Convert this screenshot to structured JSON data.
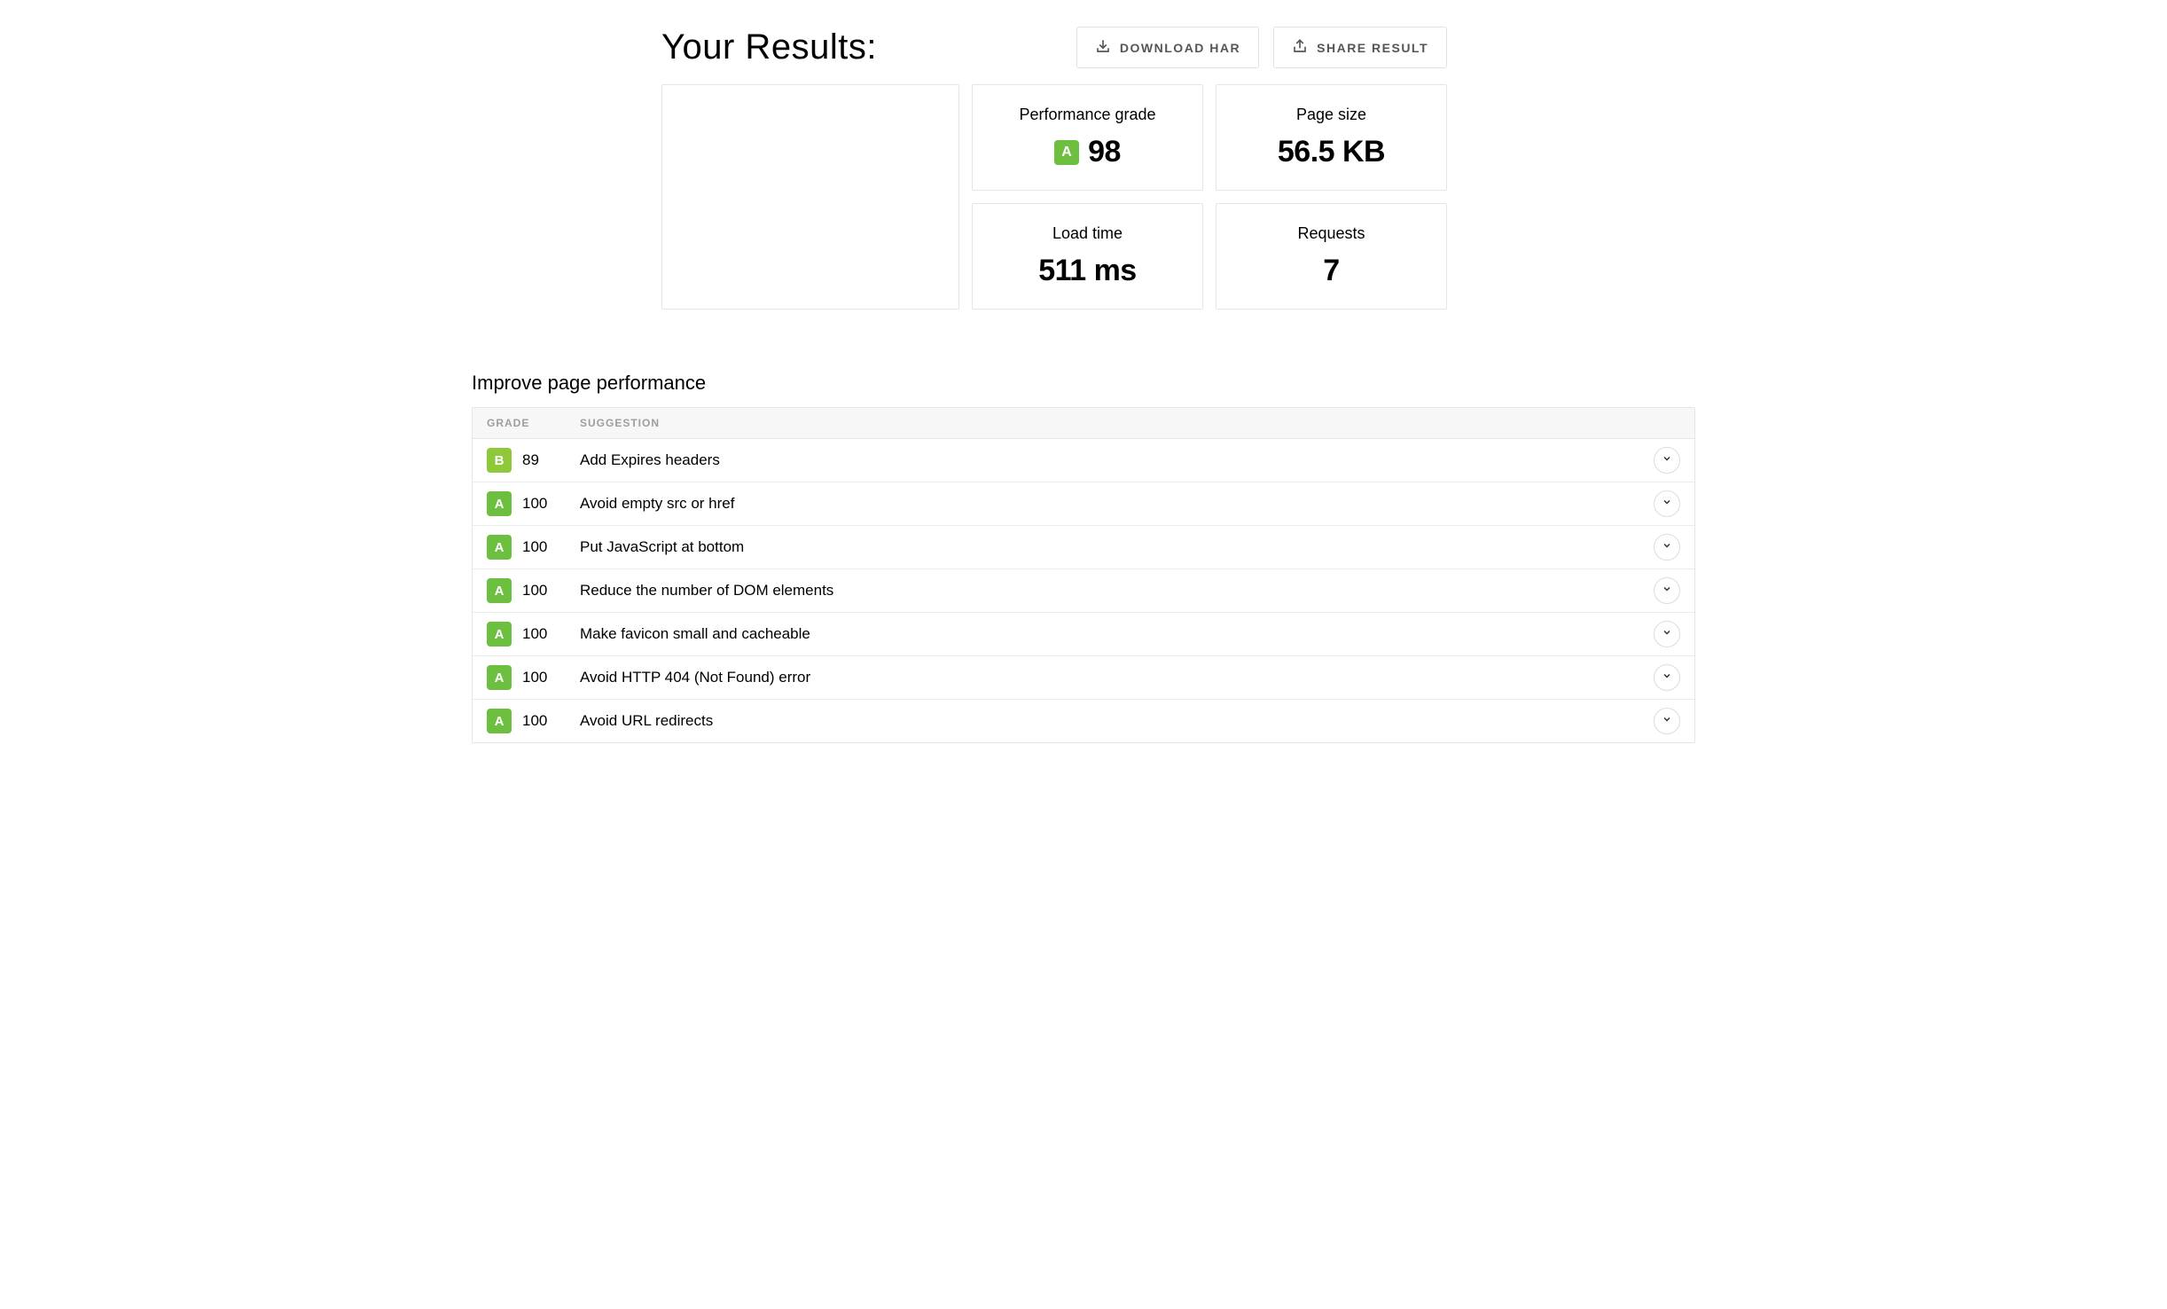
{
  "header": {
    "title": "Your Results:",
    "download_label": "DOWNLOAD HAR",
    "share_label": "SHARE RESULT"
  },
  "metrics": {
    "performance_grade": {
      "label": "Performance grade",
      "grade_letter": "A",
      "grade_color": "#6cbf3f",
      "value": "98"
    },
    "page_size": {
      "label": "Page size",
      "value": "56.5 KB"
    },
    "load_time": {
      "label": "Load time",
      "value": "511 ms"
    },
    "requests": {
      "label": "Requests",
      "value": "7"
    }
  },
  "suggestions": {
    "section_title": "Improve page performance",
    "columns": {
      "grade": "GRADE",
      "suggestion": "SUGGESTION"
    },
    "grade_colors": {
      "A": "#6cbf3f",
      "B": "#8fc93a"
    },
    "rows": [
      {
        "grade": "B",
        "score": "89",
        "text": "Add Expires headers"
      },
      {
        "grade": "A",
        "score": "100",
        "text": "Avoid empty src or href"
      },
      {
        "grade": "A",
        "score": "100",
        "text": "Put JavaScript at bottom"
      },
      {
        "grade": "A",
        "score": "100",
        "text": "Reduce the number of DOM elements"
      },
      {
        "grade": "A",
        "score": "100",
        "text": "Make favicon small and cacheable"
      },
      {
        "grade": "A",
        "score": "100",
        "text": "Avoid HTTP 404 (Not Found) error"
      },
      {
        "grade": "A",
        "score": "100",
        "text": "Avoid URL redirects"
      }
    ]
  },
  "style": {
    "background": "#ffffff",
    "border_color": "#e5e5e5",
    "header_bg": "#f7f7f7",
    "header_text": "#9e9e9e",
    "text_color": "#000000",
    "btn_text": "#555555",
    "expand_border": "#dcdcdc"
  }
}
